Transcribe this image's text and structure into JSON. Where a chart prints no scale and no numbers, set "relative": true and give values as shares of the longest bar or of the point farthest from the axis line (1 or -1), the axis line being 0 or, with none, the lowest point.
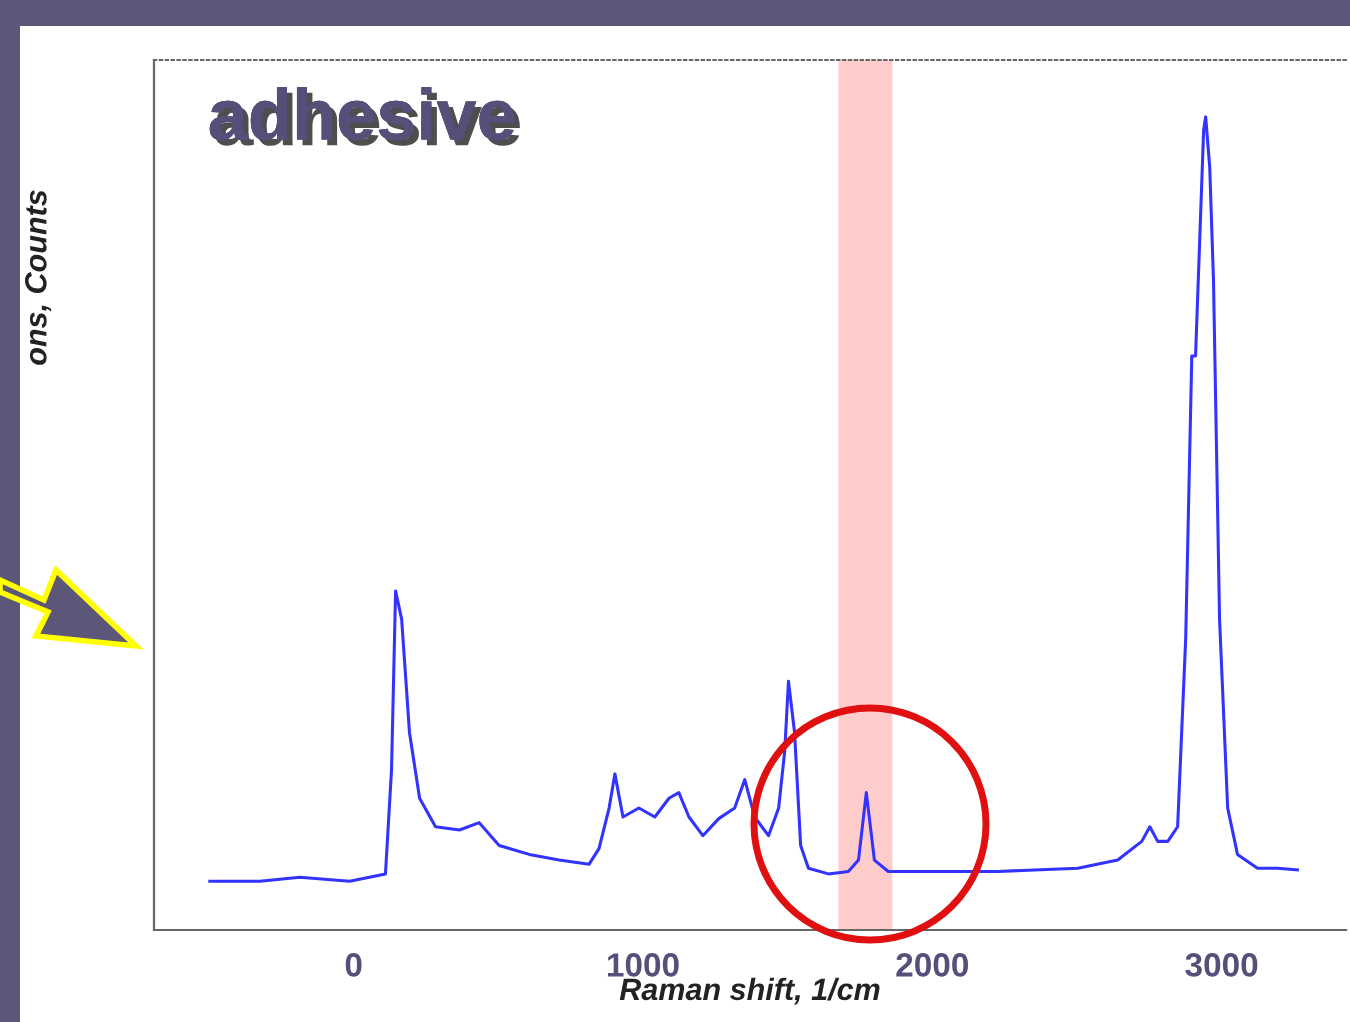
{
  "chart_data": {
    "type": "line",
    "relative": true,
    "xlabel": "Raman shift, 1/cm",
    "ylabel": "ons, Counts",
    "annotations": [
      "adhesive"
    ],
    "xlim": [
      -690,
      3430
    ],
    "xticks": [
      0,
      1000,
      2000,
      3000
    ],
    "grid": false,
    "legend": false,
    "marker": "none",
    "line_style": "solid",
    "bands": [
      {
        "axis": "x",
        "from": 1676,
        "to": 1862,
        "color": "#ffcccc"
      }
    ],
    "x": [
      -497,
      -324,
      -186,
      -14,
      110,
      131,
      145,
      166,
      193,
      228,
      283,
      366,
      434,
      503,
      607,
      710,
      814,
      848,
      883,
      903,
      931,
      986,
      1041,
      1090,
      1124,
      1159,
      1207,
      1262,
      1317,
      1352,
      1386,
      1434,
      1469,
      1490,
      1503,
      1524,
      1545,
      1572,
      1641,
      1710,
      1745,
      1772,
      1800,
      1848,
      2021,
      2228,
      2503,
      2641,
      2724,
      2752,
      2779,
      2814,
      2848,
      2876,
      2897,
      2910,
      2924,
      2938,
      2945,
      2959,
      2972,
      2993,
      3021,
      3055,
      3124,
      3193,
      3262
    ],
    "series": [
      {
        "color": "#3333ff",
        "values": [
          0.06,
          0.06,
          0.065,
          0.06,
          0.069,
          0.197,
          0.417,
          0.382,
          0.243,
          0.162,
          0.127,
          0.123,
          0.132,
          0.104,
          0.093,
          0.086,
          0.081,
          0.1,
          0.15,
          0.192,
          0.139,
          0.15,
          0.139,
          0.162,
          0.169,
          0.139,
          0.116,
          0.137,
          0.15,
          0.185,
          0.139,
          0.116,
          0.15,
          0.22,
          0.306,
          0.243,
          0.104,
          0.076,
          0.069,
          0.072,
          0.086,
          0.169,
          0.086,
          0.072,
          0.072,
          0.072,
          0.076,
          0.086,
          0.109,
          0.127,
          0.109,
          0.109,
          0.127,
          0.359,
          0.706,
          0.706,
          0.845,
          0.984,
          1,
          0.938,
          0.799,
          0.382,
          0.15,
          0.093,
          0.076,
          0.076,
          0.074
        ]
      }
    ]
  }
}
